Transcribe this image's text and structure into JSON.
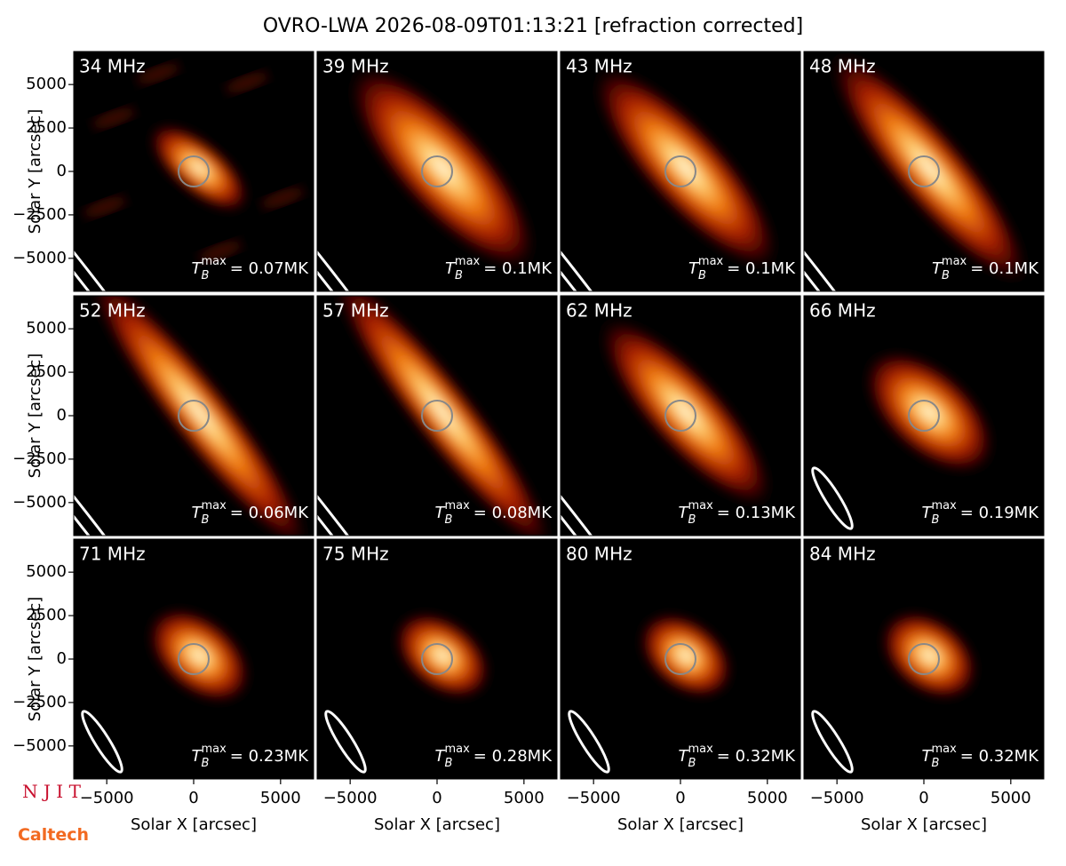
{
  "title": "OVRO-LWA 2026-08-09T01:13:21 [refraction corrected]",
  "logos": [
    "N J I T",
    "Caltech"
  ],
  "tb_symbol": {
    "base": "T",
    "sub": "B",
    "sup": "max"
  },
  "chart_data": [
    {
      "type": "image",
      "title": "34 MHz",
      "annotation": "= 0.07MK",
      "ylabel": "Solar Y [arcsec]",
      "xlim": [
        -6900,
        6900
      ],
      "ylim": [
        -6900,
        6900
      ],
      "yticks": [
        {
          "value": -5000,
          "label": "−5000"
        },
        {
          "value": -2500,
          "label": "−2500"
        },
        0,
        2500,
        5000
      ]
    },
    {
      "type": "image",
      "title": "39 MHz",
      "annotation": "= 0.1MK",
      "xlim": [
        -6900,
        6900
      ],
      "ylim": [
        -6900,
        6900
      ]
    },
    {
      "type": "image",
      "title": "43 MHz",
      "annotation": "= 0.1MK",
      "xlim": [
        -6900,
        6900
      ],
      "ylim": [
        -6900,
        6900
      ]
    },
    {
      "type": "image",
      "title": "48 MHz",
      "annotation": "= 0.1MK",
      "xlim": [
        -6900,
        6900
      ],
      "ylim": [
        -6900,
        6900
      ]
    },
    {
      "type": "image",
      "title": "52 MHz",
      "annotation": "= 0.06MK",
      "ylabel": "Solar Y [arcsec]",
      "xlim": [
        -6900,
        6900
      ],
      "ylim": [
        -6900,
        6900
      ],
      "yticks": [
        {
          "value": -5000,
          "label": "−5000"
        },
        {
          "value": -2500,
          "label": "−2500"
        },
        0,
        2500,
        5000
      ]
    },
    {
      "type": "image",
      "title": "57 MHz",
      "annotation": "= 0.08MK",
      "xlim": [
        -6900,
        6900
      ],
      "ylim": [
        -6900,
        6900
      ]
    },
    {
      "type": "image",
      "title": "62 MHz",
      "annotation": "= 0.13MK",
      "xlim": [
        -6900,
        6900
      ],
      "ylim": [
        -6900,
        6900
      ]
    },
    {
      "type": "image",
      "title": "66 MHz",
      "annotation": "= 0.19MK",
      "xlim": [
        -6900,
        6900
      ],
      "ylim": [
        -6900,
        6900
      ]
    },
    {
      "type": "image",
      "title": "71 MHz",
      "annotation": "= 0.23MK",
      "ylabel": "Solar Y [arcsec]",
      "xlabel": "Solar X [arcsec]",
      "xlim": [
        -6900,
        6900
      ],
      "ylim": [
        -6900,
        6900
      ],
      "yticks": [
        {
          "value": -5000,
          "label": "−5000"
        },
        {
          "value": -2500,
          "label": "−2500"
        },
        0,
        2500,
        5000
      ],
      "xticks": [
        {
          "value": -5000,
          "label": "−5000"
        },
        0,
        5000
      ]
    },
    {
      "type": "image",
      "title": "75 MHz",
      "annotation": "= 0.28MK",
      "xlabel": "Solar X [arcsec]",
      "xlim": [
        -6900,
        6900
      ],
      "ylim": [
        -6900,
        6900
      ],
      "xticks": [
        {
          "value": -5000,
          "label": "−5000"
        },
        0,
        5000
      ]
    },
    {
      "type": "image",
      "title": "80 MHz",
      "annotation": "= 0.32MK",
      "xlabel": "Solar X [arcsec]",
      "xlim": [
        -6900,
        6900
      ],
      "ylim": [
        -6900,
        6900
      ],
      "xticks": [
        {
          "value": -5000,
          "label": "−5000"
        },
        0,
        5000
      ]
    },
    {
      "type": "image",
      "title": "84 MHz",
      "annotation": "= 0.32MK",
      "xlabel": "Solar X [arcsec]",
      "xlim": [
        -6900,
        6900
      ],
      "ylim": [
        -6900,
        6900
      ],
      "xticks": [
        {
          "value": -5000,
          "label": "−5000"
        },
        0,
        5000
      ]
    }
  ]
}
